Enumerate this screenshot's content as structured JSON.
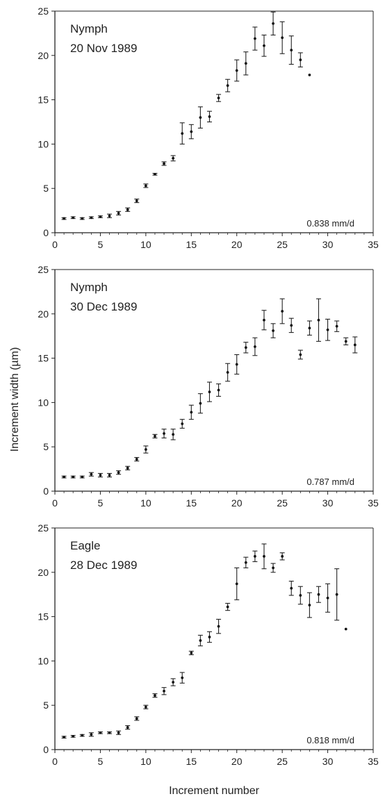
{
  "figure": {
    "ylabel": "Increment width (µm)",
    "xlabel": "Increment number"
  },
  "chart_data": [
    {
      "type": "scatter",
      "title": "Nymph",
      "subtitle": "20 Nov 1989",
      "annotation": "0.838 mm/d",
      "xlim": [
        0,
        35
      ],
      "ylim": [
        0,
        25
      ],
      "xticks": [
        0,
        5,
        10,
        15,
        20,
        25,
        30,
        35
      ],
      "yticks": [
        0,
        5,
        10,
        15,
        20,
        25
      ],
      "grid": false,
      "x": [
        1,
        2,
        3,
        4,
        5,
        6,
        7,
        8,
        9,
        10,
        11,
        12,
        13,
        14,
        15,
        16,
        17,
        18,
        19,
        20,
        21,
        22,
        23,
        24,
        25,
        26,
        27,
        28
      ],
      "y": [
        1.6,
        1.7,
        1.6,
        1.7,
        1.8,
        1.9,
        2.2,
        2.6,
        3.6,
        5.3,
        6.6,
        7.8,
        8.4,
        11.2,
        11.4,
        13.0,
        13.1,
        15.2,
        16.6,
        18.3,
        19.1,
        21.9,
        21.1,
        23.6,
        22.0,
        20.6,
        19.5,
        17.8
      ],
      "yerr": [
        0.1,
        0.1,
        0.1,
        0.1,
        0.1,
        0.2,
        0.2,
        0.2,
        0.2,
        0.2,
        0.1,
        0.2,
        0.3,
        1.2,
        0.8,
        1.2,
        0.6,
        0.4,
        0.7,
        1.2,
        1.3,
        1.3,
        1.2,
        1.3,
        1.8,
        1.6,
        0.8,
        0
      ]
    },
    {
      "type": "scatter",
      "title": "Nymph",
      "subtitle": "30 Dec 1989",
      "annotation": "0.787 mm/d",
      "xlim": [
        0,
        35
      ],
      "ylim": [
        0,
        25
      ],
      "xticks": [
        0,
        5,
        10,
        15,
        20,
        25,
        30,
        35
      ],
      "yticks": [
        0,
        5,
        10,
        15,
        20,
        25
      ],
      "grid": false,
      "x": [
        1,
        2,
        3,
        4,
        5,
        6,
        7,
        8,
        9,
        10,
        11,
        12,
        13,
        14,
        15,
        16,
        17,
        18,
        19,
        20,
        21,
        22,
        23,
        24,
        25,
        26,
        27,
        28,
        29,
        30,
        31,
        32,
        33
      ],
      "y": [
        1.6,
        1.6,
        1.6,
        1.9,
        1.8,
        1.8,
        2.1,
        2.6,
        3.6,
        4.7,
        6.2,
        6.5,
        6.4,
        7.6,
        8.9,
        9.9,
        11.2,
        11.4,
        13.4,
        14.3,
        16.2,
        16.3,
        19.3,
        18.1,
        20.3,
        18.7,
        15.4,
        18.4,
        19.3,
        18.2,
        18.6,
        16.9,
        16.5
      ],
      "yerr": [
        0.1,
        0.1,
        0.1,
        0.2,
        0.2,
        0.2,
        0.2,
        0.2,
        0.2,
        0.4,
        0.2,
        0.5,
        0.6,
        0.5,
        0.8,
        1.1,
        1.1,
        0.7,
        1.0,
        1.1,
        0.6,
        1.0,
        1.1,
        0.8,
        1.4,
        0.8,
        0.5,
        0.8,
        2.4,
        1.2,
        0.6,
        0.4,
        0.9
      ]
    },
    {
      "type": "scatter",
      "title": "Eagle",
      "subtitle": "28 Dec 1989",
      "annotation": "0.818 mm/d",
      "xlim": [
        0,
        35
      ],
      "ylim": [
        0,
        25
      ],
      "xticks": [
        0,
        5,
        10,
        15,
        20,
        25,
        30,
        35
      ],
      "yticks": [
        0,
        5,
        10,
        15,
        20,
        25
      ],
      "grid": false,
      "x": [
        1,
        2,
        3,
        4,
        5,
        6,
        7,
        8,
        9,
        10,
        11,
        12,
        13,
        14,
        15,
        16,
        17,
        18,
        19,
        20,
        21,
        22,
        23,
        24,
        25,
        26,
        27,
        28,
        29,
        30,
        31,
        32
      ],
      "y": [
        1.4,
        1.5,
        1.6,
        1.7,
        1.9,
        1.9,
        1.9,
        2.5,
        3.5,
        4.8,
        6.1,
        6.6,
        7.6,
        8.1,
        10.9,
        12.3,
        12.7,
        13.9,
        16.1,
        18.7,
        21.1,
        21.8,
        21.8,
        20.5,
        21.8,
        18.2,
        17.4,
        16.3,
        17.5,
        17.1,
        17.5,
        13.6
      ],
      "yerr": [
        0.1,
        0.1,
        0.1,
        0.2,
        0.1,
        0.1,
        0.2,
        0.2,
        0.2,
        0.2,
        0.2,
        0.4,
        0.4,
        0.6,
        0.2,
        0.6,
        0.6,
        0.8,
        0.4,
        1.8,
        0.6,
        0.6,
        1.4,
        0.5,
        0.4,
        0.8,
        1.0,
        1.4,
        0.9,
        1.6,
        2.9,
        0
      ]
    }
  ]
}
